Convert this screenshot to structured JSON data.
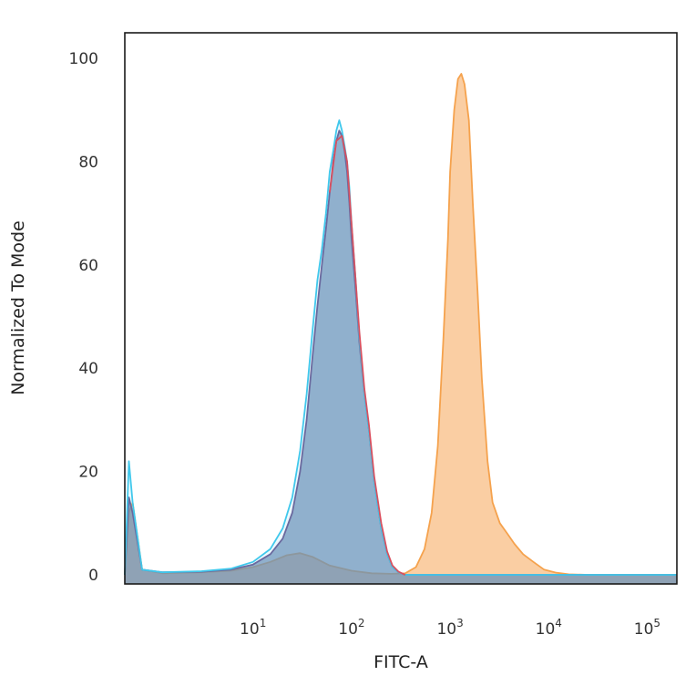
{
  "chart_data": {
    "type": "area",
    "xlabel": "FITC-A",
    "ylabel": "Normalized To Mode",
    "x_scale": "log",
    "xlim": [
      0.5,
      200000
    ],
    "ylim": [
      0,
      100
    ],
    "x_ticks": [
      {
        "value": 10,
        "base": "10",
        "exp": "1"
      },
      {
        "value": 100,
        "base": "10",
        "exp": "2"
      },
      {
        "value": 1000,
        "base": "10",
        "exp": "3"
      },
      {
        "value": 10000,
        "base": "10",
        "exp": "4"
      },
      {
        "value": 100000,
        "base": "10",
        "exp": "5"
      }
    ],
    "y_ticks": [
      0,
      20,
      40,
      60,
      80,
      100
    ],
    "grid": false,
    "legend": "none",
    "series": [
      {
        "color": "#f5a24d",
        "fill": "rgba(247,176,106,0.62)",
        "x": [
          0.5,
          0.55,
          0.6,
          0.75,
          1.2,
          3,
          6,
          10,
          15,
          22,
          30,
          40,
          60,
          100,
          160,
          250,
          350,
          450,
          550,
          650,
          750,
          850,
          950,
          1000,
          1100,
          1200,
          1300,
          1400,
          1550,
          1700,
          1900,
          2100,
          2400,
          2700,
          3200,
          3800,
          4500,
          5500,
          7000,
          9000,
          12000,
          16000,
          25000,
          50000,
          100000,
          200000
        ],
        "y": [
          0,
          12,
          14,
          1,
          0.3,
          0.5,
          0.8,
          1.5,
          2.5,
          3.8,
          4.2,
          3.5,
          1.8,
          0.8,
          0.3,
          0.2,
          0.3,
          1.5,
          5,
          12,
          25,
          45,
          65,
          78,
          90,
          96,
          97,
          95,
          88,
          72,
          55,
          38,
          22,
          14,
          10,
          8,
          6,
          4,
          2.5,
          1,
          0.4,
          0.1,
          0,
          0,
          0,
          0
        ]
      },
      {
        "color": "#6f5f96",
        "fill": "rgba(110,140,180,0.70)",
        "x": [
          0.5,
          0.55,
          0.6,
          0.75,
          1.2,
          3,
          6,
          10,
          15,
          20,
          25,
          30,
          35,
          40,
          45,
          50,
          55,
          60,
          65,
          70,
          75,
          80,
          85,
          90,
          95,
          100,
          110,
          120,
          135,
          150,
          170,
          200,
          230,
          260,
          300,
          350,
          500,
          1000,
          200000
        ],
        "y": [
          0,
          15,
          12,
          1,
          0.5,
          0.6,
          1,
          2,
          4,
          7,
          12,
          20,
          30,
          42,
          52,
          60,
          67,
          74,
          80,
          84,
          86,
          85,
          82,
          78,
          72,
          65,
          55,
          45,
          35,
          28,
          18,
          9,
          4,
          1.5,
          0.5,
          0,
          0,
          0,
          0
        ]
      },
      {
        "color": "#40c8ec",
        "fill": "rgba(64,200,236,0.10)",
        "x": [
          0.5,
          0.55,
          0.6,
          0.75,
          1.2,
          3,
          6,
          10,
          15,
          20,
          25,
          30,
          35,
          40,
          45,
          50,
          55,
          60,
          65,
          70,
          75,
          80,
          85,
          90,
          95,
          100,
          110,
          120,
          135,
          150,
          170,
          200,
          230,
          260,
          300,
          350,
          500,
          1000,
          200000
        ],
        "y": [
          0,
          22,
          14,
          1,
          0.5,
          0.7,
          1.2,
          2.5,
          5,
          9,
          15,
          24,
          35,
          47,
          57,
          63,
          70,
          78,
          82,
          86,
          88,
          86,
          83,
          80,
          75,
          68,
          57,
          46,
          35,
          28,
          18,
          9,
          4,
          1.5,
          0.5,
          0,
          0,
          0,
          0
        ]
      },
      {
        "color": "#d8505f",
        "fill": "none",
        "x": [
          60,
          70,
          80,
          90,
          100,
          110,
          120,
          135,
          150,
          170,
          200,
          230,
          260,
          300,
          350
        ],
        "y": [
          74,
          84,
          85,
          80,
          68,
          57,
          47,
          36,
          29,
          19,
          10,
          4.5,
          1.8,
          0.6,
          0
        ]
      }
    ]
  }
}
